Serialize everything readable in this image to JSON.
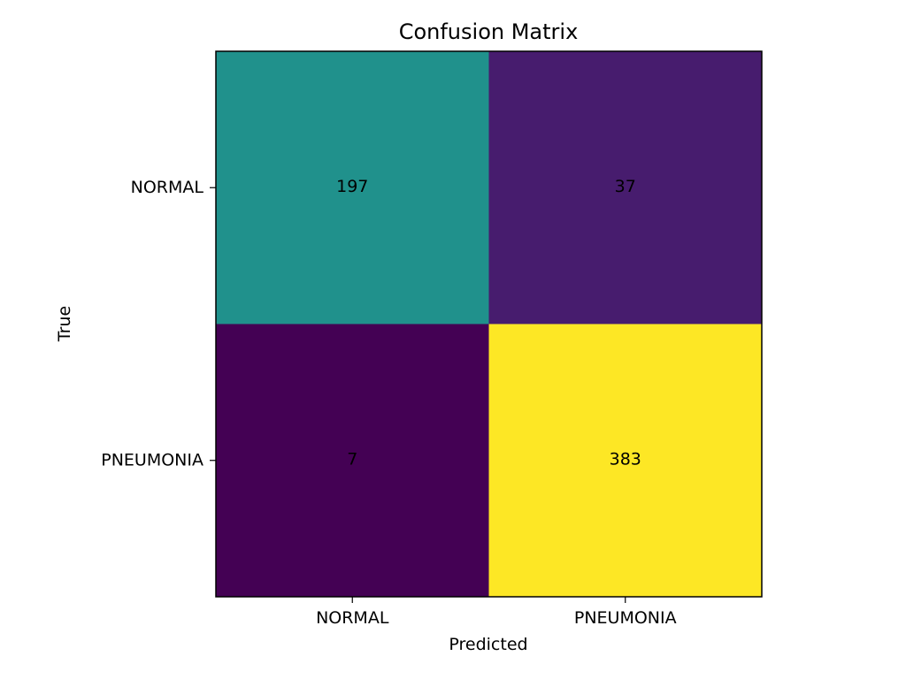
{
  "chart_data": {
    "type": "heatmap",
    "title": "Confusion Matrix",
    "xlabel": "Predicted",
    "ylabel": "True",
    "x_categories": [
      "NORMAL",
      "PNEUMONIA"
    ],
    "y_categories": [
      "NORMAL",
      "PNEUMONIA"
    ],
    "values": [
      [
        197,
        37
      ],
      [
        7,
        383
      ]
    ],
    "colormap": "viridis",
    "grid": false,
    "legend": "none"
  }
}
